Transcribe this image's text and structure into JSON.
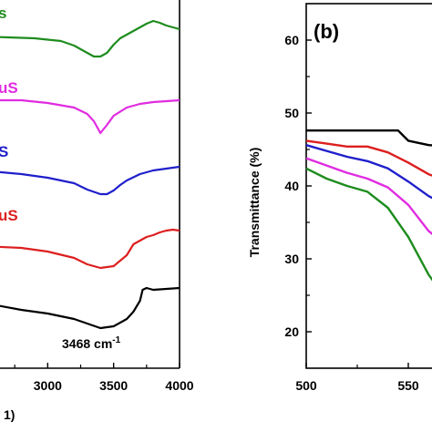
{
  "chart_data": [
    {
      "panel": "a",
      "type": "line",
      "xlim": [
        2500,
        4000
      ],
      "xticks": [
        "3000",
        "3500",
        "4000"
      ],
      "xlabel_fragment": "1)",
      "annotation": {
        "text": "3468 cm",
        "sup": "-1"
      },
      "series": [
        {
          "name_fragment": "s",
          "color": "#1e8c1e",
          "offset": 0,
          "x": [
            2500,
            2700,
            2900,
            3100,
            3200,
            3300,
            3350,
            3400,
            3450,
            3500,
            3550,
            3600,
            3700,
            3750,
            3800,
            3850,
            3900,
            3950,
            4000
          ],
          "y": [
            -8,
            -9,
            -10,
            -13,
            -18,
            -26,
            -30,
            -30,
            -26,
            -17,
            -10,
            -6,
            2,
            6,
            9,
            7,
            4,
            2,
            0
          ]
        },
        {
          "name_fragment": "uS",
          "color": "#e02ce0",
          "offset": 0,
          "x": [
            2500,
            2800,
            3000,
            3200,
            3300,
            3350,
            3400,
            3450,
            3500,
            3600,
            3700,
            3800,
            3900,
            4000
          ],
          "y": [
            0,
            0,
            -3,
            -8,
            -15,
            -23,
            -36,
            -27,
            -17,
            -8,
            -4,
            -2,
            -1,
            0
          ]
        },
        {
          "name_fragment": "S",
          "color": "#1f1fcc",
          "offset": 0,
          "x": [
            2500,
            2800,
            3000,
            3200,
            3300,
            3400,
            3450,
            3500,
            3550,
            3600,
            3700,
            3800,
            3900,
            4000
          ],
          "y": [
            -4,
            -8,
            -12,
            -18,
            -25,
            -30,
            -30,
            -26,
            -20,
            -15,
            -8,
            -4,
            -2,
            0
          ]
        },
        {
          "name_fragment": "uS",
          "color": "#dd1f1f",
          "offset": 0,
          "x": [
            2500,
            2800,
            3000,
            3200,
            3300,
            3400,
            3500,
            3600,
            3650,
            3700,
            3750,
            3800,
            3850,
            3900,
            3950,
            4000
          ],
          "y": [
            -20,
            -22,
            -26,
            -33,
            -40,
            -44,
            -42,
            -30,
            -18,
            -14,
            -10,
            -8,
            -5,
            -3,
            -2,
            -3
          ]
        },
        {
          "name_fragment": "",
          "color": "#000000",
          "offset": 0,
          "x": [
            2500,
            2800,
            3000,
            3200,
            3300,
            3400,
            3500,
            3600,
            3650,
            3700,
            3720,
            3750,
            3800,
            3900,
            4000
          ],
          "y": [
            -12,
            -20,
            -24,
            -30,
            -35,
            -40,
            -38,
            -30,
            -22,
            -10,
            2,
            4,
            2,
            3,
            4
          ]
        }
      ]
    },
    {
      "panel": "b",
      "type": "line",
      "title": "(b)",
      "ylabel": "Transmittance (%)",
      "xlim": [
        500,
        600
      ],
      "ylim": [
        15,
        65
      ],
      "xticks": [
        "500",
        "550"
      ],
      "yticks": [
        "20",
        "30",
        "40",
        "50",
        "60"
      ],
      "series": [
        {
          "color": "#000000",
          "x": [
            500,
            520,
            540,
            545,
            550,
            560,
            570
          ],
          "y": [
            47.6,
            47.6,
            47.6,
            47.6,
            46.2,
            45.6,
            45.4
          ]
        },
        {
          "color": "#dd1f1f",
          "x": [
            500,
            510,
            520,
            530,
            540,
            550,
            560,
            570
          ],
          "y": [
            46.2,
            45.8,
            45.4,
            45.4,
            44.6,
            43.2,
            41.6,
            40.6
          ]
        },
        {
          "color": "#1f1fcc",
          "x": [
            500,
            510,
            520,
            530,
            540,
            550,
            560,
            570
          ],
          "y": [
            45.6,
            44.8,
            44.0,
            43.4,
            42.4,
            40.6,
            38.6,
            37.2
          ]
        },
        {
          "color": "#e02ce0",
          "x": [
            500,
            510,
            520,
            530,
            540,
            550,
            560,
            570
          ],
          "y": [
            43.8,
            42.8,
            41.8,
            41.0,
            39.8,
            37.4,
            33.8,
            31.6
          ]
        },
        {
          "color": "#1e8c1e",
          "x": [
            500,
            510,
            520,
            530,
            540,
            550,
            560,
            570
          ],
          "y": [
            42.4,
            41.0,
            40.0,
            39.2,
            37.0,
            33.0,
            27.8,
            24.0
          ]
        }
      ]
    }
  ]
}
